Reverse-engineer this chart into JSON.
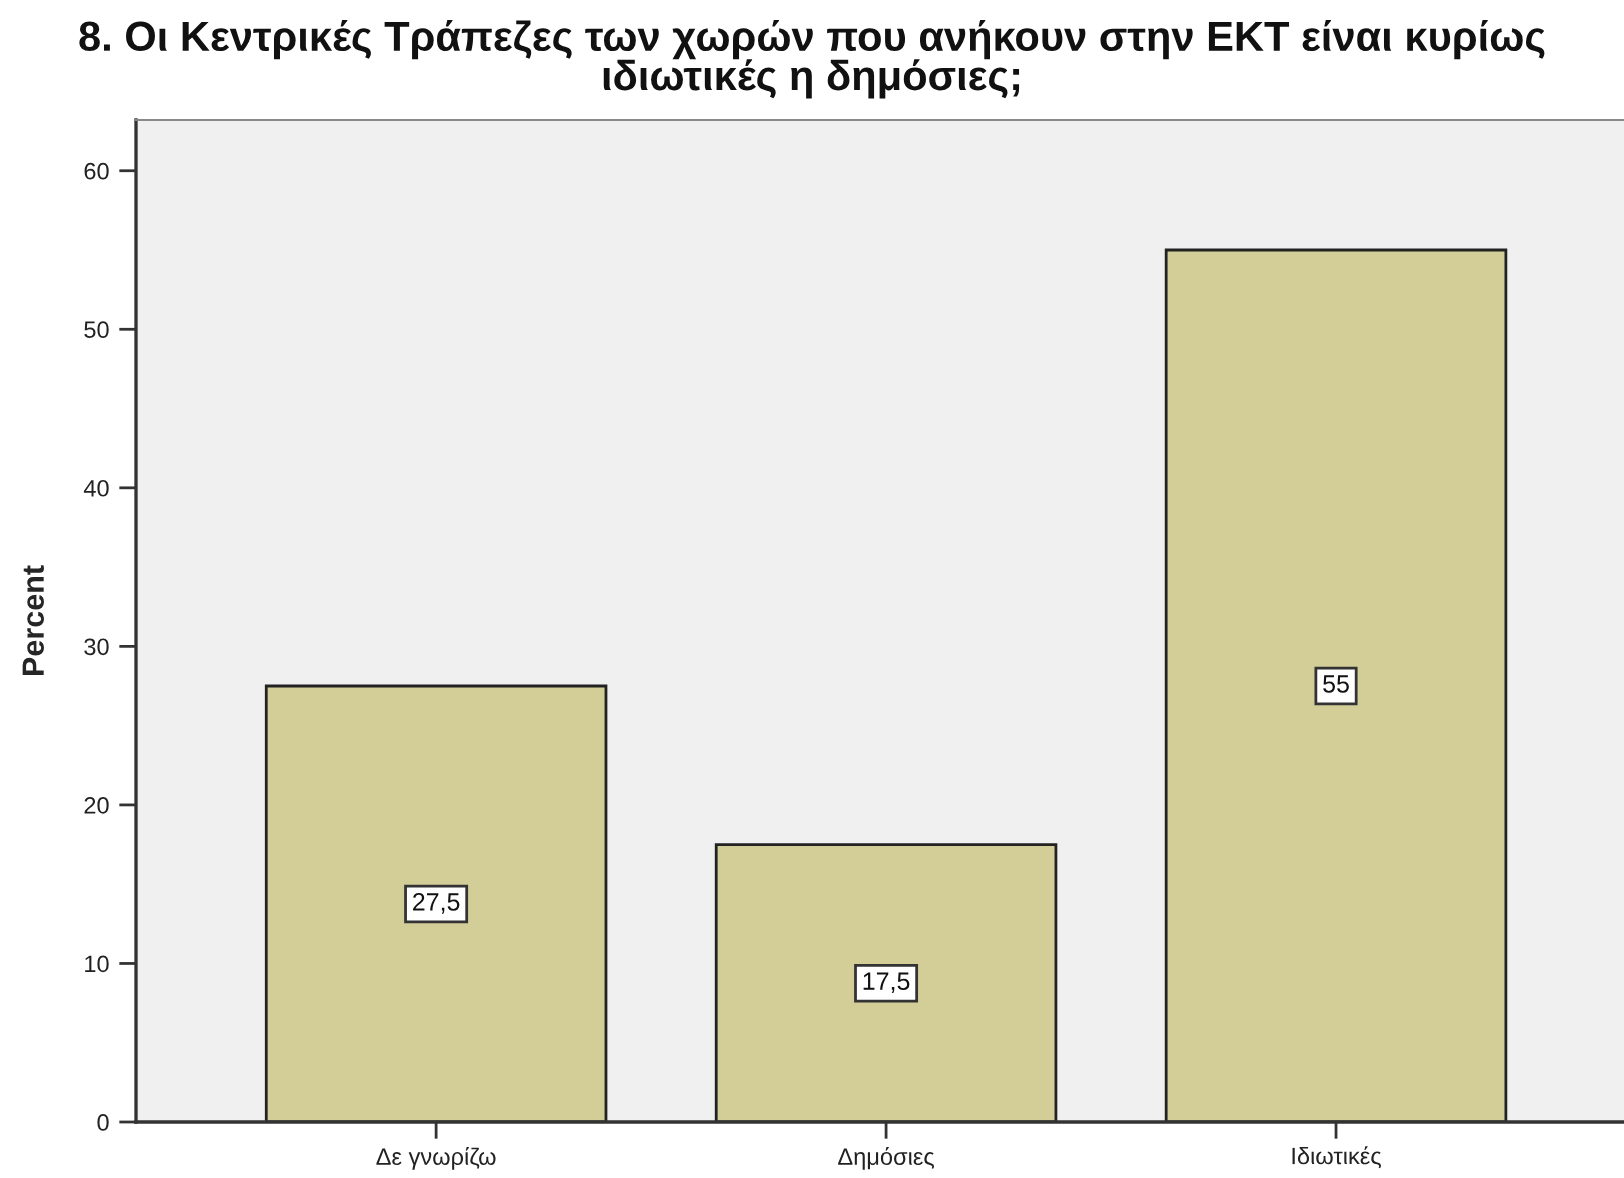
{
  "chart_data": {
    "type": "bar",
    "title": "8. Οι Κεντρικές Τράπεζες των χωρών που ανήκουν στην ΕΚΤ είναι κυρίως\nιδιωτικές η δημόσιες;",
    "ylabel": "Percent",
    "categories": [
      "Δε γνωρίζω",
      "Δημόσιες",
      "Ιδιωτικές"
    ],
    "values": [
      27.5,
      17.5,
      55
    ],
    "value_labels": [
      "27,5",
      "17,5",
      "55"
    ],
    "color": "#d3ce97",
    "ylim": [
      0,
      63.2
    ],
    "yticks": [
      0,
      10,
      20,
      30,
      40,
      50,
      60
    ]
  }
}
